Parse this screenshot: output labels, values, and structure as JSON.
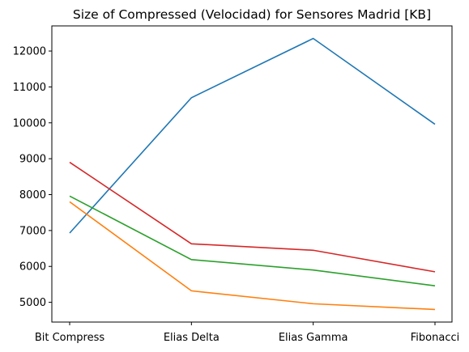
{
  "chart_data": {
    "type": "line",
    "title": "Size of Compressed (Velocidad) for Sensores Madrid [KB]",
    "xlabel": "",
    "ylabel": "",
    "categories": [
      "Bit Compress",
      "Elias Delta",
      "Elias Gamma",
      "Fibonacci"
    ],
    "ylim": [
      4450,
      12700
    ],
    "yticks": [
      5000,
      6000,
      7000,
      8000,
      9000,
      10000,
      11000,
      12000
    ],
    "grid": false,
    "legend": "none",
    "series": [
      {
        "color": "#1f77b4",
        "values": [
          6930,
          10700,
          12350,
          9960
        ]
      },
      {
        "color": "#ff7f0e",
        "values": [
          7800,
          5320,
          4960,
          4800
        ]
      },
      {
        "color": "#2ca02c",
        "values": [
          7960,
          6190,
          5900,
          5460
        ]
      },
      {
        "color": "#d62728",
        "values": [
          8900,
          6630,
          6450,
          5850
        ]
      }
    ]
  }
}
